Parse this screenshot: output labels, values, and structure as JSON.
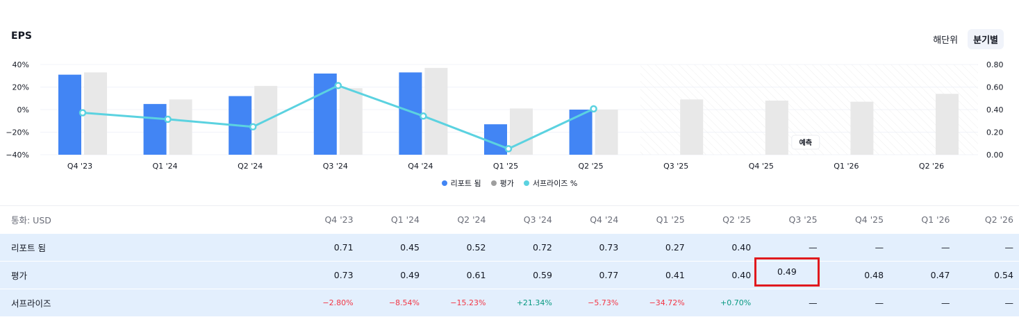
{
  "header": {
    "title": "EPS",
    "toggle": {
      "annual_label": "해단위",
      "quarterly_label": "분기별",
      "active": "quarterly"
    }
  },
  "colors": {
    "reported": "#4285f4",
    "estimate": "#e8e8e8",
    "surprise": "#5bd2e0",
    "negative": "#f23645",
    "positive": "#089981"
  },
  "legend": {
    "reported": "리포트 됨",
    "estimate": "평가",
    "surprise": "서프라이즈 %"
  },
  "forecast_label": "예측",
  "chart_data": {
    "type": "bar",
    "categories": [
      "Q4 '23",
      "Q1 '24",
      "Q2 '24",
      "Q3 '24",
      "Q4 '24",
      "Q1 '25",
      "Q2 '25",
      "Q3 '25",
      "Q4 '25",
      "Q1 '26",
      "Q2 '26"
    ],
    "series": [
      {
        "name": "리포트 됨",
        "type": "bar",
        "axis": "right",
        "values": [
          0.71,
          0.45,
          0.52,
          0.72,
          0.73,
          0.27,
          0.4,
          null,
          null,
          null,
          null
        ]
      },
      {
        "name": "평가",
        "type": "bar",
        "axis": "right",
        "values": [
          0.73,
          0.49,
          0.61,
          0.59,
          0.77,
          0.41,
          0.4,
          0.49,
          0.48,
          0.47,
          0.54
        ]
      },
      {
        "name": "서프라이즈 %",
        "type": "line",
        "axis": "left",
        "values": [
          -2.8,
          -8.54,
          -15.23,
          21.34,
          -5.73,
          -34.72,
          0.7,
          null,
          null,
          null,
          null
        ]
      }
    ],
    "left_axis": {
      "ticks": [
        "40%",
        "20%",
        "0%",
        "−20%",
        "−40%"
      ],
      "range": [
        -40,
        40
      ]
    },
    "right_axis": {
      "ticks": [
        "0.80",
        "0.60",
        "0.40",
        "0.20",
        "0.00"
      ],
      "range": [
        0,
        0.8
      ]
    },
    "forecast_start_index": 7,
    "title": "EPS"
  },
  "table": {
    "currency_label": "통화: USD",
    "columns": [
      "Q4 '23",
      "Q1 '24",
      "Q2 '24",
      "Q3 '24",
      "Q4 '24",
      "Q1 '25",
      "Q2 '25",
      "Q3 '25",
      "Q4 '25",
      "Q1 '26",
      "Q2 '26"
    ],
    "rows": [
      {
        "label": "리포트 됨",
        "values": [
          "0.71",
          "0.45",
          "0.52",
          "0.72",
          "0.73",
          "0.27",
          "0.40",
          "—",
          "—",
          "—",
          "—"
        ]
      },
      {
        "label": "평가",
        "values": [
          "0.73",
          "0.49",
          "0.61",
          "0.59",
          "0.77",
          "0.41",
          "0.40",
          "0.49",
          "0.48",
          "0.47",
          "0.54"
        ]
      },
      {
        "label": "서프라이즈",
        "values": [
          "−2.80%",
          "−8.54%",
          "−15.23%",
          "+21.34%",
          "−5.73%",
          "−34.72%",
          "+0.70%",
          "—",
          "—",
          "—",
          "—"
        ]
      }
    ],
    "highlighted_cell": {
      "row": 1,
      "col": 7
    }
  }
}
